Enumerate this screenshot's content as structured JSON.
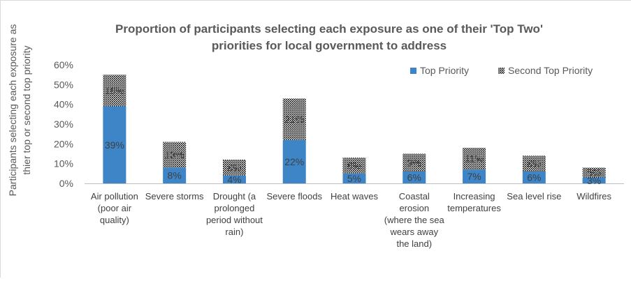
{
  "chart_data": {
    "type": "bar",
    "stacked": true,
    "title_lines": [
      "Proportion of participants selecting each exposure as one of their 'Top Two'",
      "priorities for local government to address"
    ],
    "ylabel_lines": [
      "Participants selecting each exposure as",
      "thier top or second top priority"
    ],
    "xlabel": "",
    "ylim": [
      0,
      60
    ],
    "yticks": [
      "0%",
      "10%",
      "20%",
      "30%",
      "40%",
      "50%",
      "60%"
    ],
    "legend_position": "top-right",
    "grid": false,
    "categories": [
      [
        "Air pollution",
        "(poor air",
        "quality)"
      ],
      [
        "Severe storms"
      ],
      [
        "Drought (a",
        "prolonged",
        "period without",
        "rain)"
      ],
      [
        "Severe floods"
      ],
      [
        "Heat waves"
      ],
      [
        "Coastal",
        "erosion",
        "(where the sea",
        "wears away",
        "the land)"
      ],
      [
        "Increasing",
        "temperatures"
      ],
      [
        "Sea level rise"
      ],
      [
        "Wildfires"
      ]
    ],
    "series": [
      {
        "name": "Top Priority",
        "color": "#3d85c6",
        "values": [
          39,
          8,
          4,
          22,
          5,
          6,
          7,
          6,
          3
        ],
        "labels": [
          "39%",
          "8%",
          "4%",
          "22%",
          "5%",
          "6%",
          "7%",
          "6%",
          "3%"
        ]
      },
      {
        "name": "Second Top Priority",
        "pattern": "dots",
        "values": [
          16,
          13,
          8,
          21,
          8,
          9,
          11,
          8,
          5
        ],
        "labels": [
          "16%",
          "13%",
          "8%",
          "21%",
          "8%",
          "9%",
          "11%",
          "8%",
          "5%"
        ]
      }
    ]
  }
}
